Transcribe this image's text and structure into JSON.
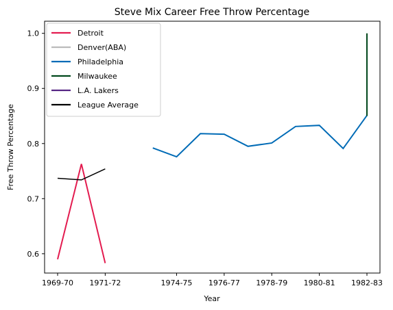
{
  "chart_data": {
    "type": "line",
    "title": "Steve Mix Career Free Throw Percentage",
    "xlabel": "Year",
    "ylabel": "Free Throw Percentage",
    "x_categories": [
      "1969-70",
      "1970-71",
      "1971-72",
      "1972-73",
      "1973-74",
      "1974-75",
      "1975-76",
      "1976-77",
      "1977-78",
      "1978-79",
      "1979-80",
      "1980-81",
      "1981-82",
      "1982-83"
    ],
    "x_tick_labels": [
      "1969-70",
      "1971-72",
      "1974-75",
      "1976-77",
      "1978-79",
      "1980-81",
      "1982-83"
    ],
    "y_ticks": [
      0.6,
      0.7,
      0.8,
      0.9,
      1.0
    ],
    "y_tick_labels": [
      "0.6",
      "0.7",
      "0.8",
      "0.9",
      "1.0"
    ],
    "ylim": [
      0.565,
      1.022
    ],
    "grid": false,
    "legend_position": "top-left",
    "series": [
      {
        "name": "Detroit",
        "color": "#e31b4f",
        "points": [
          [
            "1969-70",
            0.59
          ],
          [
            "1970-71",
            0.763
          ],
          [
            "1971-72",
            0.583
          ]
        ]
      },
      {
        "name": "Denver(ABA)",
        "color": "#bbbbbb",
        "points": []
      },
      {
        "name": "Philadelphia",
        "color": "#006bb6",
        "points": [
          [
            "1973-74",
            0.792
          ],
          [
            "1974-75",
            0.776
          ],
          [
            "1975-76",
            0.818
          ],
          [
            "1976-77",
            0.817
          ],
          [
            "1977-78",
            0.795
          ],
          [
            "1978-79",
            0.801
          ],
          [
            "1979-80",
            0.831
          ],
          [
            "1980-81",
            0.833
          ],
          [
            "1981-82",
            0.791
          ],
          [
            "1982-83",
            0.851
          ]
        ]
      },
      {
        "name": "Milwaukee",
        "color": "#00471b",
        "points": [
          [
            "1982-83",
            0.85
          ],
          [
            "1982-83",
            1.0
          ]
        ]
      },
      {
        "name": "L.A. Lakers",
        "color": "#552583",
        "points": []
      },
      {
        "name": "League Average",
        "color": "#000000",
        "points": [
          [
            "1969-70",
            0.737
          ],
          [
            "1970-71",
            0.734
          ],
          [
            "1971-72",
            0.754
          ]
        ]
      }
    ]
  }
}
